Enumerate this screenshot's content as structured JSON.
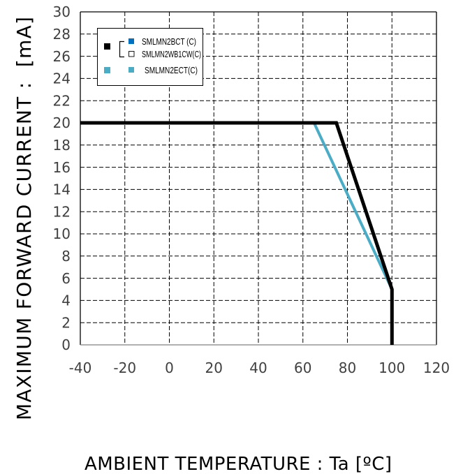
{
  "chart_data": {
    "type": "line",
    "xlabel": "AMBIENT TEMPERATURE : Ta [ºC]",
    "ylabel": "MAXIMUM FORWARD CURRENT :  [mA]",
    "xlim": [
      -40,
      120
    ],
    "ylim": [
      0,
      30
    ],
    "xticks": [
      -40,
      -20,
      0,
      20,
      40,
      60,
      80,
      100,
      120
    ],
    "yticks": [
      0,
      2,
      4,
      6,
      8,
      10,
      12,
      14,
      16,
      18,
      20,
      22,
      24,
      26,
      28,
      30
    ],
    "grid": true,
    "legend_position": "top-left",
    "series": [
      {
        "names": [
          "SMLMN2BCT (C)",
          "SMLMN2WB1CW(C)"
        ],
        "color": "#000000",
        "marker_colors": [
          "#0070C0",
          "#FFFFFF"
        ],
        "x": [
          -40,
          75,
          100,
          100
        ],
        "y": [
          20,
          20,
          5,
          0
        ]
      },
      {
        "names": [
          "SMLMN2ECT(C)"
        ],
        "color": "#4BACC6",
        "marker_colors": [
          "#4BACC6"
        ],
        "x": [
          -40,
          65,
          100,
          100
        ],
        "y": [
          20,
          20,
          5,
          0
        ]
      }
    ]
  }
}
